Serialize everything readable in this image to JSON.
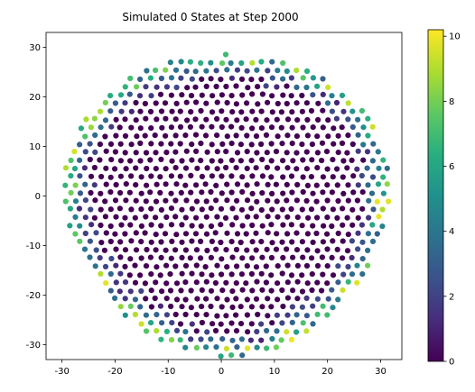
{
  "chart_data": {
    "type": "scatter",
    "title": "Simulated 0 States at Step 2000",
    "xlabel": "",
    "ylabel": "",
    "xlim": [
      -33,
      34
    ],
    "ylim": [
      -33,
      33
    ],
    "x_ticks": [
      -30,
      -20,
      -10,
      0,
      10,
      20,
      30
    ],
    "y_ticks": [
      -30,
      -20,
      -10,
      0,
      10,
      20,
      30
    ],
    "grid": false,
    "colormap": "viridis",
    "colorbar": {
      "min": 0,
      "max": 10.2,
      "ticks": [
        0,
        2,
        4,
        6,
        8,
        10
      ]
    },
    "distribution": {
      "shape": "disk",
      "center": [
        1,
        -1
      ],
      "radius": 30.5,
      "spacing": 1.9,
      "interior_value": 0,
      "rim_value_range": [
        3,
        10
      ]
    }
  }
}
